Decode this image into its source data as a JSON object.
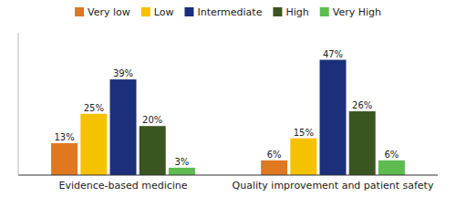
{
  "chart_data": {
    "type": "bar",
    "categories": [
      "Evidence-based medicine",
      "Quality improvement and patient safety"
    ],
    "series": [
      {
        "name": "Very low",
        "color": "#E07820",
        "values": [
          13,
          6
        ],
        "value_labels": [
          "13%",
          "6%"
        ]
      },
      {
        "name": "Low",
        "color": "#F5C200",
        "values": [
          25,
          15
        ],
        "value_labels": [
          "25%",
          "15%"
        ]
      },
      {
        "name": "Intermediate",
        "color": "#1B2F7A",
        "values": [
          39,
          47
        ],
        "value_labels": [
          "39%",
          "47%"
        ]
      },
      {
        "name": "High",
        "color": "#3A5520",
        "values": [
          20,
          26
        ],
        "value_labels": [
          "20%",
          "26%"
        ]
      },
      {
        "name": "Very High",
        "color": "#5DBB50",
        "values": [
          3,
          6
        ],
        "value_labels": [
          "3%",
          "6%"
        ]
      }
    ],
    "ylim": [
      0,
      58
    ],
    "grid": false,
    "legend": "top",
    "data_labels": true,
    "tick_labels": "x"
  }
}
